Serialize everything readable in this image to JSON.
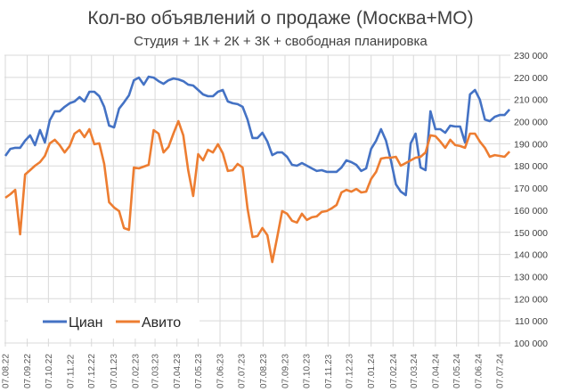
{
  "chart_data": {
    "type": "line",
    "title": "Кол-во объявлений о продаже (Москва+МО)",
    "subtitle": "Студия + 1К + 2К + 3К + свободная планировка",
    "xlabel": "",
    "ylabel": "",
    "ylim": [
      100000,
      230000
    ],
    "y_tick_step": 10000,
    "y_tick_labels": [
      "100 000",
      "110 000",
      "120 000",
      "130 000",
      "140 000",
      "150 000",
      "160 000",
      "170 000",
      "180 000",
      "190 000",
      "200 000",
      "210 000",
      "220 000",
      "230 000"
    ],
    "y_axis_side": "right",
    "x_tick_labels": [
      "07.08.22",
      "07.09.22",
      "07.10.22",
      "07.11.22",
      "07.12.22",
      "07.01.23",
      "07.02.23",
      "07.03.23",
      "07.04.23",
      "07.05.23",
      "07.06.23",
      "07.07.23",
      "07.08.23",
      "07.09.23",
      "07.10.23",
      "07.11.23",
      "07.12.23",
      "07.01.24",
      "07.02.24",
      "07.03.24",
      "07.04.24",
      "07.05.24",
      "07.06.24",
      "07.07.24"
    ],
    "x_tick_dates": [
      "2022-08-07",
      "2022-09-07",
      "2022-10-07",
      "2022-11-07",
      "2022-12-07",
      "2023-01-07",
      "2023-02-07",
      "2023-03-07",
      "2023-04-07",
      "2023-05-07",
      "2023-06-07",
      "2023-07-07",
      "2023-08-07",
      "2023-09-07",
      "2023-10-07",
      "2023-11-07",
      "2023-12-07",
      "2024-01-07",
      "2024-02-07",
      "2024-03-07",
      "2024-04-07",
      "2024-05-07",
      "2024-06-07",
      "2024-07-07"
    ],
    "grid": true,
    "legend": "bottom-left",
    "x": [
      "2022-08-07",
      "2022-08-14",
      "2022-08-21",
      "2022-08-28",
      "2022-09-04",
      "2022-09-11",
      "2022-09-18",
      "2022-09-25",
      "2022-10-02",
      "2022-10-09",
      "2022-10-16",
      "2022-10-23",
      "2022-10-30",
      "2022-11-06",
      "2022-11-13",
      "2022-11-20",
      "2022-11-27",
      "2022-12-04",
      "2022-12-11",
      "2022-12-18",
      "2022-12-25",
      "2023-01-01",
      "2023-01-08",
      "2023-01-15",
      "2023-01-22",
      "2023-01-29",
      "2023-02-05",
      "2023-02-12",
      "2023-02-19",
      "2023-02-26",
      "2023-03-05",
      "2023-03-12",
      "2023-03-19",
      "2023-03-26",
      "2023-04-02",
      "2023-04-09",
      "2023-04-16",
      "2023-04-23",
      "2023-04-30",
      "2023-05-07",
      "2023-05-14",
      "2023-05-21",
      "2023-05-28",
      "2023-06-04",
      "2023-06-11",
      "2023-06-18",
      "2023-06-25",
      "2023-07-02",
      "2023-07-09",
      "2023-07-16",
      "2023-07-23",
      "2023-07-30",
      "2023-08-06",
      "2023-08-13",
      "2023-08-20",
      "2023-08-27",
      "2023-09-03",
      "2023-09-10",
      "2023-09-17",
      "2023-09-24",
      "2023-10-01",
      "2023-10-08",
      "2023-10-15",
      "2023-10-22",
      "2023-10-29",
      "2023-11-05",
      "2023-11-12",
      "2023-11-19",
      "2023-11-26",
      "2023-12-03",
      "2023-12-10",
      "2023-12-17",
      "2023-12-24",
      "2023-12-31",
      "2024-01-07",
      "2024-01-14",
      "2024-01-21",
      "2024-01-28",
      "2024-02-04",
      "2024-02-11",
      "2024-02-18",
      "2024-02-25",
      "2024-03-03",
      "2024-03-10",
      "2024-03-17",
      "2024-03-24",
      "2024-03-31",
      "2024-04-07",
      "2024-04-14",
      "2024-04-21",
      "2024-04-28",
      "2024-05-05",
      "2024-05-12",
      "2024-05-19",
      "2024-05-26",
      "2024-06-02",
      "2024-06-09",
      "2024-06-16",
      "2024-06-23",
      "2024-06-30",
      "2024-07-07",
      "2024-07-14",
      "2024-07-21"
    ],
    "series": [
      {
        "name": "Циан",
        "color": "#4472C4",
        "values": [
          184500,
          187700,
          188200,
          188200,
          191400,
          193800,
          189400,
          196200,
          190600,
          200600,
          204700,
          204700,
          206700,
          208300,
          209100,
          211100,
          209100,
          213500,
          213500,
          211500,
          206700,
          198200,
          197400,
          205900,
          208700,
          211900,
          218700,
          219900,
          216700,
          220300,
          219900,
          218300,
          217100,
          218700,
          219500,
          219100,
          218300,
          216700,
          216300,
          214300,
          212300,
          211500,
          211500,
          213500,
          214300,
          209100,
          208300,
          207900,
          206700,
          201000,
          192600,
          192600,
          195000,
          191000,
          184900,
          186100,
          186100,
          184100,
          180500,
          180100,
          181300,
          180100,
          178900,
          177700,
          178100,
          177300,
          177300,
          177300,
          179300,
          182500,
          181700,
          180500,
          177700,
          178900,
          187700,
          191400,
          196600,
          191400,
          182500,
          171700,
          168400,
          166800,
          190200,
          194600,
          179300,
          178100,
          204700,
          196600,
          196600,
          195000,
          198200,
          197800,
          197800,
          190600,
          212300,
          214300,
          209900,
          201000,
          200200,
          202200,
          203000,
          203000,
          205500
        ]
      },
      {
        "name": "Авито",
        "color": "#ED7D31",
        "values": [
          165600,
          167200,
          169200,
          149100,
          176100,
          178100,
          180100,
          181700,
          184500,
          190200,
          191800,
          189400,
          186100,
          189000,
          194600,
          196200,
          193000,
          196600,
          189800,
          190200,
          180900,
          163600,
          161200,
          159600,
          151900,
          151100,
          179300,
          178900,
          179700,
          180500,
          196200,
          194600,
          186100,
          188600,
          194600,
          200200,
          193800,
          178100,
          166400,
          185300,
          182500,
          187300,
          186100,
          189800,
          185700,
          177700,
          178100,
          180900,
          179300,
          160800,
          147900,
          148300,
          151900,
          148700,
          136600,
          147900,
          159600,
          158400,
          155200,
          154400,
          158400,
          155600,
          156800,
          157200,
          159200,
          159600,
          160800,
          162400,
          168000,
          169200,
          168400,
          169600,
          168000,
          168400,
          174100,
          177300,
          183300,
          183700,
          183700,
          184100,
          180100,
          181300,
          182500,
          183700,
          184100,
          186100,
          193800,
          193400,
          191000,
          188200,
          191800,
          189400,
          189000,
          188200,
          194600,
          194600,
          191000,
          188200,
          184100,
          184900,
          184500,
          184100,
          186500
        ]
      }
    ]
  }
}
